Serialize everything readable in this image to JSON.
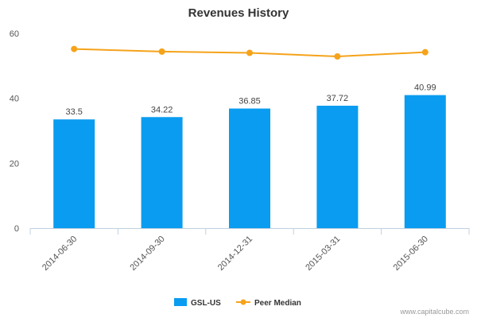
{
  "chart_data": {
    "type": "bar",
    "title": "Revenues History",
    "categories": [
      "2014-06-30",
      "2014-09-30",
      "2014-12-31",
      "2015-03-31",
      "2015-06-30"
    ],
    "series": [
      {
        "name": "GSL-US",
        "type": "bar",
        "color": "#0a9cf0",
        "values": [
          33.5,
          34.22,
          36.85,
          37.72,
          40.99
        ],
        "labels": [
          "33.5",
          "34.22",
          "36.85",
          "37.72",
          "40.99"
        ]
      },
      {
        "name": "Peer Median",
        "type": "line",
        "color": "#f5a31a",
        "values": [
          55.2,
          54.4,
          54.0,
          52.9,
          54.2
        ]
      }
    ],
    "ylim": [
      0,
      60
    ],
    "yticks": [
      "0",
      "20",
      "40",
      "60"
    ],
    "legend_position": "bottom",
    "grid": false
  },
  "credit": "www.capitalcube.com"
}
